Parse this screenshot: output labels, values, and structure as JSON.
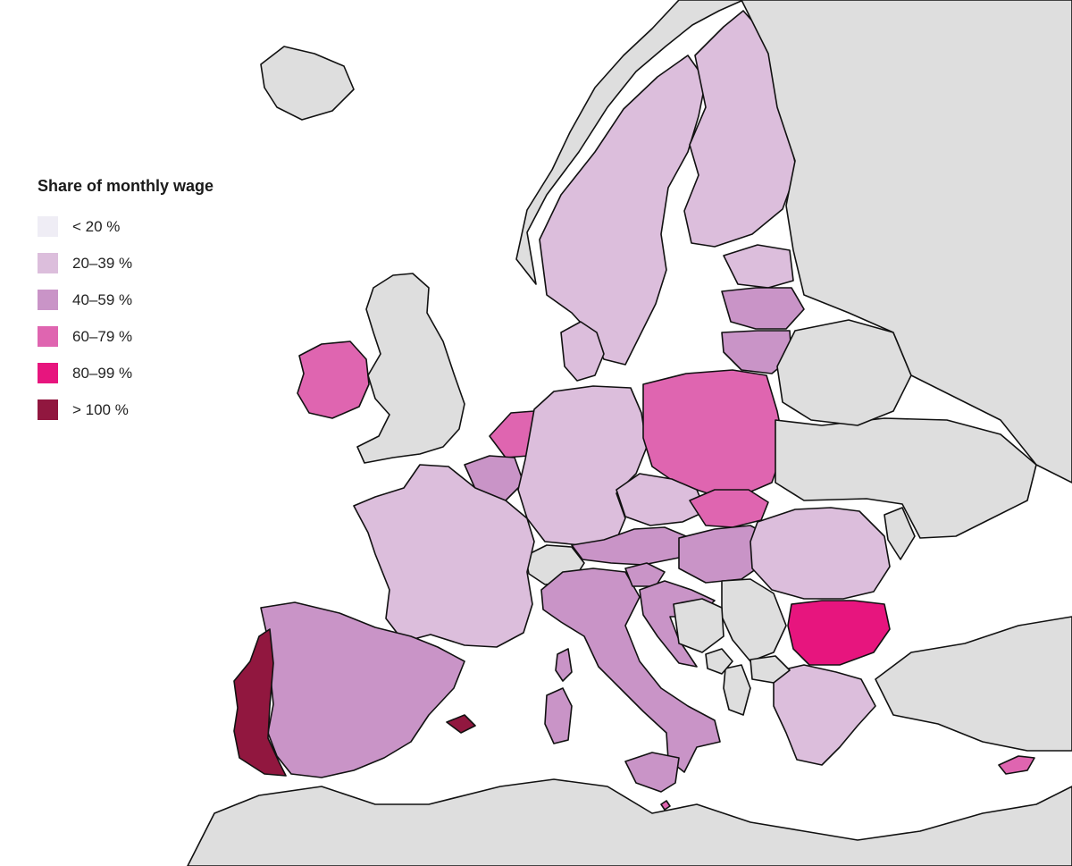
{
  "legend": {
    "title": "Share of monthly wage",
    "items": [
      {
        "label": "< 20 %",
        "color": "#efedf5"
      },
      {
        "label": "20–39 %",
        "color": "#dcbedc"
      },
      {
        "label": "40–59 %",
        "color": "#c994c7"
      },
      {
        "label": "60–79 %",
        "color": "#df65b0"
      },
      {
        "label": "80–99 %",
        "color": "#e7157e"
      },
      {
        "label": "> 100 %",
        "color": "#91173f"
      }
    ]
  },
  "colors": {
    "background": "#ffffff",
    "non_covered_land": "#dedede",
    "border": "#111111"
  },
  "regions": [
    {
      "name": "Iceland",
      "category": "not-covered"
    },
    {
      "name": "Ireland",
      "category": "60–79 %"
    },
    {
      "name": "United Kingdom",
      "category": "not-covered"
    },
    {
      "name": "Norway",
      "category": "not-covered"
    },
    {
      "name": "Sweden",
      "category": "20–39 %"
    },
    {
      "name": "Finland",
      "category": "20–39 %"
    },
    {
      "name": "Estonia",
      "category": "20–39 %"
    },
    {
      "name": "Latvia",
      "category": "40–59 %"
    },
    {
      "name": "Lithuania",
      "category": "40–59 %"
    },
    {
      "name": "Denmark",
      "category": "20–39 %"
    },
    {
      "name": "Netherlands",
      "category": "60–79 %"
    },
    {
      "name": "Belgium",
      "category": "40–59 %"
    },
    {
      "name": "Germany",
      "category": "20–39 %"
    },
    {
      "name": "Poland",
      "category": "60–79 %"
    },
    {
      "name": "Czechia",
      "category": "20–39 %"
    },
    {
      "name": "Slovakia",
      "category": "60–79 %"
    },
    {
      "name": "Austria",
      "category": "40–59 %"
    },
    {
      "name": "Switzerland",
      "category": "not-covered"
    },
    {
      "name": "France",
      "category": "20–39 %"
    },
    {
      "name": "Spain",
      "category": "40–59 %"
    },
    {
      "name": "Portugal",
      "category": "> 100 %"
    },
    {
      "name": "Italy",
      "category": "40–59 %"
    },
    {
      "name": "Slovenia",
      "category": "40–59 %"
    },
    {
      "name": "Croatia",
      "category": "40–59 %"
    },
    {
      "name": "Hungary",
      "category": "40–59 %"
    },
    {
      "name": "Romania",
      "category": "20–39 %"
    },
    {
      "name": "Bulgaria",
      "category": "80–99 %"
    },
    {
      "name": "Greece",
      "category": "20–39 %"
    },
    {
      "name": "Cyprus",
      "category": "60–79 %"
    },
    {
      "name": "Malta",
      "category": "60–79 %"
    },
    {
      "name": "Sardinia",
      "category": "40–59 %"
    },
    {
      "name": "Corsica",
      "category": "40–59 %"
    },
    {
      "name": "Sicily",
      "category": "40–59 %"
    },
    {
      "name": "Balearic Islands",
      "category": "> 100 %"
    },
    {
      "name": "Serbia",
      "category": "not-covered"
    },
    {
      "name": "Bosnia and Herzegovina",
      "category": "not-covered"
    },
    {
      "name": "Albania",
      "category": "not-covered"
    },
    {
      "name": "North Macedonia",
      "category": "not-covered"
    },
    {
      "name": "Montenegro",
      "category": "not-covered"
    },
    {
      "name": "Moldova",
      "category": "not-covered"
    },
    {
      "name": "Ukraine",
      "category": "not-covered"
    },
    {
      "name": "Belarus",
      "category": "not-covered"
    },
    {
      "name": "Russia",
      "category": "not-covered"
    },
    {
      "name": "Turkey",
      "category": "not-covered"
    },
    {
      "name": "North Africa",
      "category": "not-covered"
    }
  ]
}
